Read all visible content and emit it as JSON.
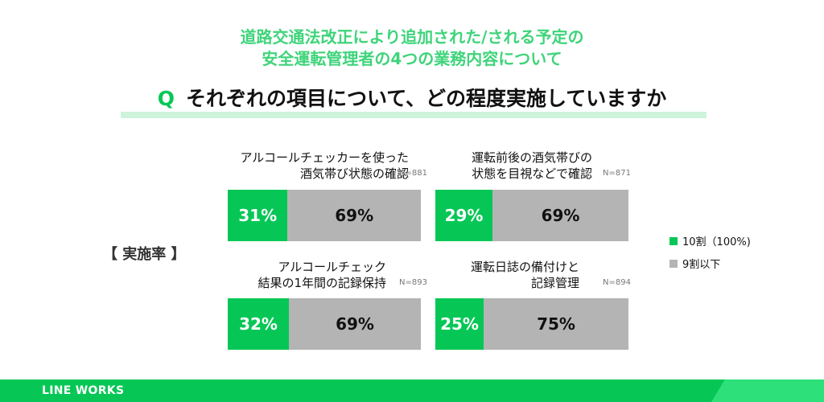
{
  "header": {
    "subtitle_line1": "道路交通法改正により追加された/される予定の",
    "subtitle_line2": "安全運転管理者の4つの業務内容について",
    "question_prefix": "Q",
    "question": "それぞれの項目について、どの程度実施していますか"
  },
  "side_label": "【 実施率 】",
  "legend": [
    {
      "label": "10割（100%)",
      "color": "#06c755"
    },
    {
      "label": "9割以下",
      "color": "#b4b4b4"
    }
  ],
  "footer": {
    "brand": "LINE WORKS"
  },
  "chart_data": [
    {
      "type": "bar",
      "title": [
        "アルコールチェッカーを使った",
        "酒気帯び状態の確認"
      ],
      "n": "N=881",
      "categories": [
        "10割（100%)",
        "9割以下"
      ],
      "values": [
        31,
        69
      ],
      "labels": [
        "31%",
        "69%"
      ]
    },
    {
      "type": "bar",
      "title": [
        "運転前後の酒気帯びの",
        "状態を目視などで確認"
      ],
      "n": "N=871",
      "categories": [
        "10割（100%)",
        "9割以下"
      ],
      "values": [
        29,
        69
      ],
      "labels": [
        "29%",
        "69%"
      ]
    },
    {
      "type": "bar",
      "title": [
        "アルコールチェック",
        "結果の1年間の記録保持"
      ],
      "n": "N=893",
      "categories": [
        "10割（100%)",
        "9割以下"
      ],
      "values": [
        32,
        69
      ],
      "labels": [
        "32%",
        "69%"
      ]
    },
    {
      "type": "bar",
      "title": [
        "運転日誌の備付けと",
        "記録管理"
      ],
      "n": "N=894",
      "categories": [
        "10割（100%)",
        "9割以下"
      ],
      "values": [
        25,
        75
      ],
      "labels": [
        "25%",
        "75%"
      ]
    }
  ]
}
